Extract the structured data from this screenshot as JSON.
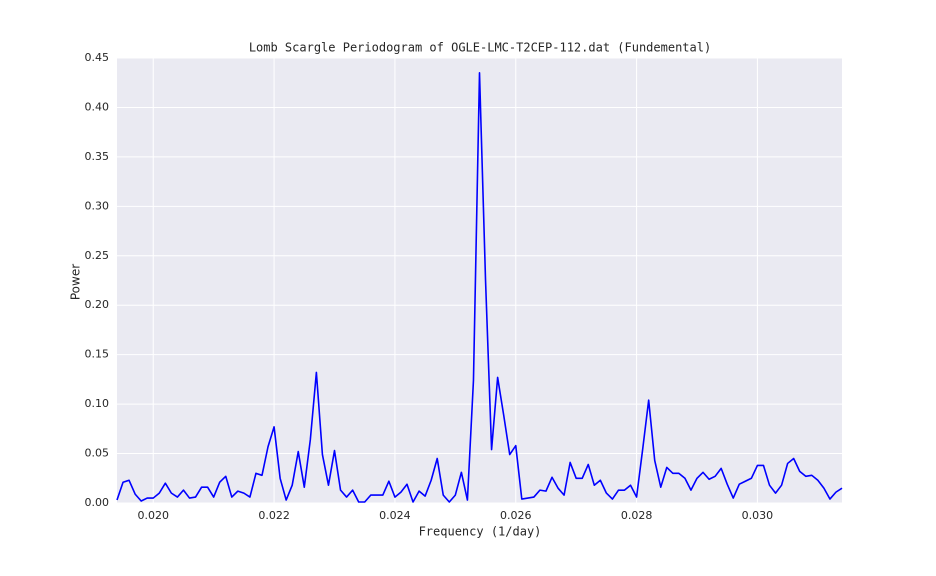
{
  "chart_data": {
    "type": "line",
    "title": "Lomb Scargle Periodogram of OGLE-LMC-T2CEP-112.dat (Fundemental)",
    "x_label": "Frequency (1/day)",
    "y_label": "Power",
    "x": [
      0.0194,
      0.0195,
      0.0196,
      0.0197,
      0.0198,
      0.0199,
      0.02,
      0.0201,
      0.0202,
      0.0203,
      0.0204,
      0.0205,
      0.0206,
      0.0207,
      0.0208,
      0.0209,
      0.021,
      0.0211,
      0.0212,
      0.0213,
      0.0214,
      0.0215,
      0.0216,
      0.0217,
      0.0218,
      0.0219,
      0.022,
      0.0221,
      0.0222,
      0.0223,
      0.0224,
      0.0225,
      0.0226,
      0.0227,
      0.0228,
      0.0229,
      0.023,
      0.0231,
      0.0232,
      0.0233,
      0.0234,
      0.0235,
      0.0236,
      0.0237,
      0.0238,
      0.0239,
      0.024,
      0.0241,
      0.0242,
      0.0243,
      0.0244,
      0.0245,
      0.0246,
      0.0247,
      0.0248,
      0.0249,
      0.025,
      0.0251,
      0.0252,
      0.0253,
      0.0254,
      0.0255,
      0.0256,
      0.0257,
      0.0258,
      0.0259,
      0.026,
      0.0261,
      0.0262,
      0.0263,
      0.0264,
      0.0265,
      0.0266,
      0.0267,
      0.0268,
      0.0269,
      0.027,
      0.0271,
      0.0272,
      0.0273,
      0.0274,
      0.0275,
      0.0276,
      0.0277,
      0.0278,
      0.0279,
      0.028,
      0.0281,
      0.0282,
      0.0283,
      0.0284,
      0.0285,
      0.0286,
      0.0287,
      0.0288,
      0.0289,
      0.029,
      0.0291,
      0.0292,
      0.0293,
      0.0294,
      0.0295,
      0.0296,
      0.0297,
      0.0298,
      0.0299,
      0.03,
      0.0301,
      0.0302,
      0.0303,
      0.0304,
      0.0305,
      0.0306,
      0.0307,
      0.0308,
      0.0309,
      0.031,
      0.0311,
      0.0312,
      0.0313,
      0.0314
    ],
    "series": [
      {
        "name": "Power",
        "color": "#0000ff",
        "values": [
          0.003,
          0.021,
          0.023,
          0.009,
          0.002,
          0.005,
          0.005,
          0.01,
          0.02,
          0.01,
          0.006,
          0.013,
          0.005,
          0.006,
          0.016,
          0.016,
          0.006,
          0.021,
          0.027,
          0.006,
          0.012,
          0.01,
          0.006,
          0.03,
          0.028,
          0.057,
          0.077,
          0.025,
          0.003,
          0.018,
          0.052,
          0.016,
          0.064,
          0.132,
          0.049,
          0.018,
          0.053,
          0.013,
          0.006,
          0.013,
          0.001,
          0.001,
          0.008,
          0.008,
          0.008,
          0.022,
          0.006,
          0.011,
          0.019,
          0.001,
          0.012,
          0.007,
          0.023,
          0.045,
          0.008,
          0.001,
          0.008,
          0.031,
          0.003,
          0.124,
          0.435,
          0.225,
          0.054,
          0.127,
          0.089,
          0.049,
          0.058,
          0.004,
          0.005,
          0.006,
          0.013,
          0.012,
          0.026,
          0.015,
          0.008,
          0.041,
          0.025,
          0.025,
          0.039,
          0.018,
          0.023,
          0.01,
          0.004,
          0.013,
          0.013,
          0.018,
          0.006,
          0.054,
          0.104,
          0.043,
          0.016,
          0.036,
          0.03,
          0.03,
          0.025,
          0.013,
          0.025,
          0.031,
          0.024,
          0.027,
          0.035,
          0.019,
          0.005,
          0.019,
          0.022,
          0.025,
          0.038,
          0.038,
          0.018,
          0.01,
          0.018,
          0.04,
          0.045,
          0.032,
          0.027,
          0.028,
          0.023,
          0.015,
          0.004,
          0.011,
          0.015
        ]
      }
    ],
    "xlim": [
      0.0194,
      0.0314
    ],
    "ylim": [
      0,
      0.45
    ],
    "xticks": [
      {
        "value": 0.02,
        "label": "0.020"
      },
      {
        "value": 0.022,
        "label": "0.022"
      },
      {
        "value": 0.024,
        "label": "0.024"
      },
      {
        "value": 0.026,
        "label": "0.026"
      },
      {
        "value": 0.028,
        "label": "0.028"
      },
      {
        "value": 0.03,
        "label": "0.030"
      }
    ],
    "yticks": [
      {
        "value": 0,
        "label": "0.00"
      },
      {
        "value": 0.05,
        "label": "0.05"
      },
      {
        "value": 0.1,
        "label": "0.10"
      },
      {
        "value": 0.15,
        "label": "0.15"
      },
      {
        "value": 0.2,
        "label": "0.20"
      },
      {
        "value": 0.25,
        "label": "0.25"
      },
      {
        "value": 0.3,
        "label": "0.30"
      },
      {
        "value": 0.35,
        "label": "0.35"
      },
      {
        "value": 0.4,
        "label": "0.40"
      },
      {
        "value": 0.45,
        "label": "0.45"
      }
    ],
    "grid": true,
    "background": "#eaeaf2"
  }
}
